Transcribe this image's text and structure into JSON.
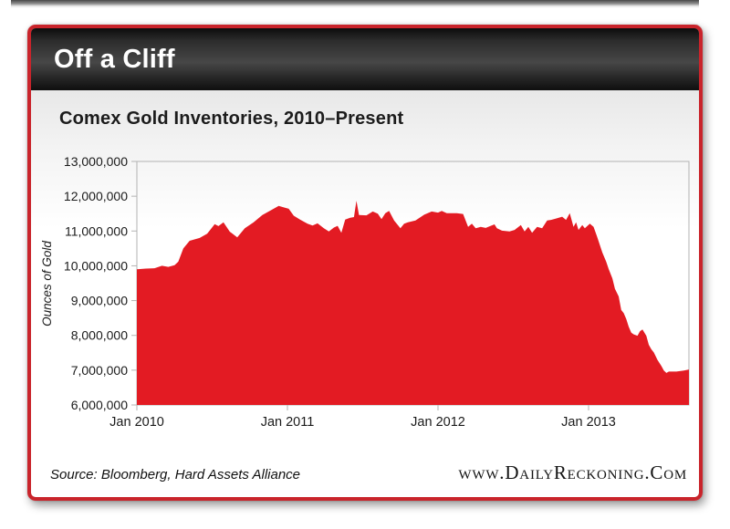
{
  "header": {
    "title": "Off a Cliff"
  },
  "chart": {
    "title": "Comex Gold Inventories, 2010–Present"
  },
  "footer": {
    "source": "Source: Bloomberg, Hard Assets Alliance",
    "website": "www.DailyReckoning.Com"
  },
  "colors": {
    "frame_red": "#c9242b",
    "area_red": "#e31b23",
    "header_black": "#1a1a1a",
    "axis_gray": "#b3b3b3"
  },
  "chart_data": {
    "type": "area",
    "title": "Comex Gold Inventories, 2010–Present",
    "xlabel": "",
    "ylabel": "Ounces of Gold",
    "y_unit": "troy ounces",
    "values_unit": "million troy ounces",
    "x_unit": "months since Jan 2010",
    "x_range": [
      0,
      44
    ],
    "y_range": [
      6,
      13
    ],
    "grid": false,
    "legend": "none",
    "y_ticks": [
      13,
      12,
      11,
      10,
      9,
      8,
      7,
      6
    ],
    "y_tick_labels": [
      "13,000,000",
      "12,000,000",
      "11,000,000",
      "10,000,000",
      "9,000,000",
      "8,000,000",
      "7,000,000",
      "6,000,000"
    ],
    "x_ticks": [
      0,
      12,
      24,
      36
    ],
    "x_tick_labels": [
      "Jan 2010",
      "Jan 2011",
      "Jan 2012",
      "Jan 2013"
    ],
    "series": [
      {
        "name": "Comex gold inventories",
        "x_months": [
          0,
          0.7,
          1.4,
          2.0,
          2.5,
          3.0,
          3.3,
          3.7,
          4.2,
          5.0,
          5.6,
          6.2,
          6.5,
          6.9,
          7.4,
          8.0,
          8.6,
          9.3,
          10.0,
          10.8,
          11.3,
          11.8,
          12.1,
          12.5,
          13.0,
          13.6,
          14.0,
          14.4,
          14.9,
          15.3,
          15.7,
          16.0,
          16.3,
          16.6,
          17.0,
          17.3,
          17.5,
          17.7,
          18.3,
          18.8,
          19.2,
          19.5,
          19.8,
          20.1,
          20.5,
          21.0,
          21.3,
          21.6,
          22.2,
          22.9,
          23.5,
          24.0,
          24.3,
          24.7,
          25.5,
          26.0,
          26.4,
          26.7,
          27.0,
          27.4,
          27.8,
          28.2,
          28.5,
          28.7,
          29.1,
          29.7,
          30.1,
          30.6,
          30.9,
          31.2,
          31.5,
          31.9,
          32.3,
          32.7,
          33.0,
          33.4,
          33.9,
          34.2,
          34.5,
          34.8,
          35.0,
          35.2,
          35.5,
          35.7,
          36.1,
          36.4,
          36.7,
          37.1,
          37.4,
          37.6,
          37.9,
          38.1,
          38.4,
          38.6,
          38.8,
          39.0,
          39.2,
          39.4,
          39.6,
          39.9,
          40.1,
          40.3,
          40.6,
          40.8,
          41.0,
          41.2,
          41.5,
          41.8,
          42.0,
          42.2,
          42.4,
          43.0,
          43.6,
          44.0
        ],
        "values_moz": [
          9.9,
          9.92,
          9.93,
          10.0,
          9.97,
          10.02,
          10.12,
          10.5,
          10.72,
          10.8,
          10.92,
          11.2,
          11.14,
          11.25,
          10.98,
          10.82,
          11.08,
          11.25,
          11.46,
          11.62,
          11.72,
          11.67,
          11.64,
          11.44,
          11.33,
          11.21,
          11.16,
          11.22,
          11.08,
          10.99,
          11.1,
          11.15,
          10.95,
          11.33,
          11.38,
          11.4,
          11.87,
          11.46,
          11.45,
          11.56,
          11.5,
          11.34,
          11.51,
          11.58,
          11.3,
          11.08,
          11.21,
          11.25,
          11.3,
          11.47,
          11.56,
          11.53,
          11.58,
          11.51,
          11.51,
          11.49,
          11.12,
          11.21,
          11.08,
          11.12,
          11.09,
          11.15,
          11.19,
          11.08,
          11.01,
          10.99,
          11.03,
          11.17,
          10.99,
          11.12,
          10.95,
          11.12,
          11.08,
          11.3,
          11.32,
          11.36,
          11.41,
          11.32,
          11.51,
          11.12,
          11.25,
          11.03,
          11.17,
          11.08,
          11.21,
          11.12,
          10.82,
          10.38,
          10.12,
          9.91,
          9.64,
          9.34,
          9.12,
          8.73,
          8.64,
          8.47,
          8.25,
          8.08,
          8.03,
          7.99,
          8.12,
          8.17,
          7.99,
          7.73,
          7.6,
          7.51,
          7.29,
          7.12,
          6.99,
          6.92,
          6.96,
          6.96,
          6.99,
          7.02
        ]
      }
    ]
  }
}
